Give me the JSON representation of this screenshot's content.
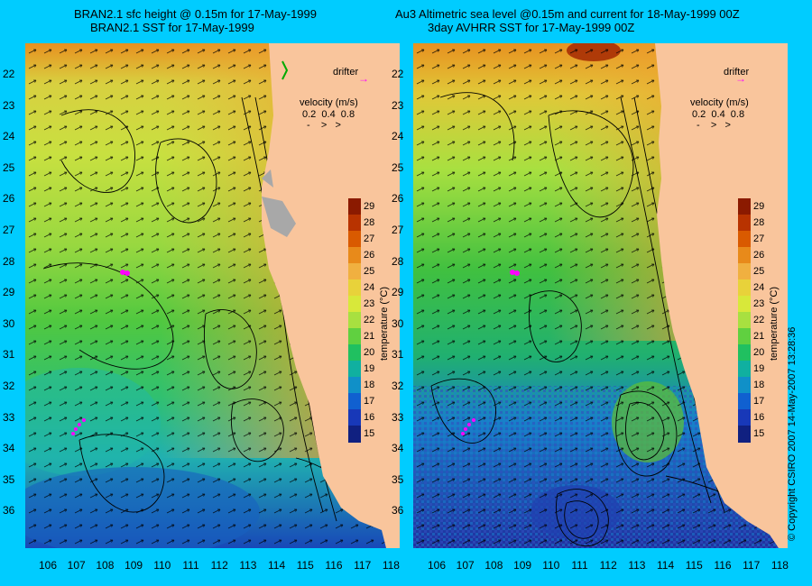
{
  "left_panel": {
    "title_line1": "BRAN2.1 sfc height @ 0.15m for 17-May-1999",
    "title_line2": "BRAN2.1 SST for 17-May-1999",
    "drifter_label": "drifter",
    "velocity_label": "velocity (m/s)",
    "velocity_scale": "0.2  0.4  0.8"
  },
  "right_panel": {
    "title_line1": "Au3 Altimetric sea level  @0.15m and current for 18-May-1999 00Z",
    "title_line2": "3day AVHRR SST for 17-May-1999 00Z",
    "drifter_label": "drifter",
    "velocity_label": "velocity (m/s)",
    "velocity_scale": "0.2  0.4  0.8"
  },
  "axes": {
    "latitudes": [
      "22",
      "23",
      "24",
      "25",
      "26",
      "27",
      "28",
      "29",
      "30",
      "31",
      "32",
      "33",
      "34",
      "35",
      "36"
    ],
    "longitudes": [
      "106",
      "107",
      "108",
      "109",
      "110",
      "111",
      "112",
      "113",
      "114",
      "115",
      "116",
      "117",
      "118"
    ]
  },
  "colorbar": {
    "title": "temperature (°C)",
    "ticks": [
      "29",
      "28",
      "27",
      "26",
      "25",
      "24",
      "23",
      "22",
      "21",
      "20",
      "19",
      "18",
      "17",
      "16",
      "15"
    ],
    "colors": [
      "#8b1a00",
      "#b83300",
      "#d95a00",
      "#e88a1a",
      "#f0b040",
      "#e8d23a",
      "#d8e83a",
      "#a8e040",
      "#60d040",
      "#20c060",
      "#10b0a0",
      "#1090c8",
      "#1060d0",
      "#1838b8",
      "#102080"
    ]
  },
  "copyright": "© Copyright CSIRO 2007   14-May-2007 13:28:36",
  "colors": {
    "background": "#00ccff",
    "land": "#f9c59c",
    "drifter": "#ff00ff"
  }
}
